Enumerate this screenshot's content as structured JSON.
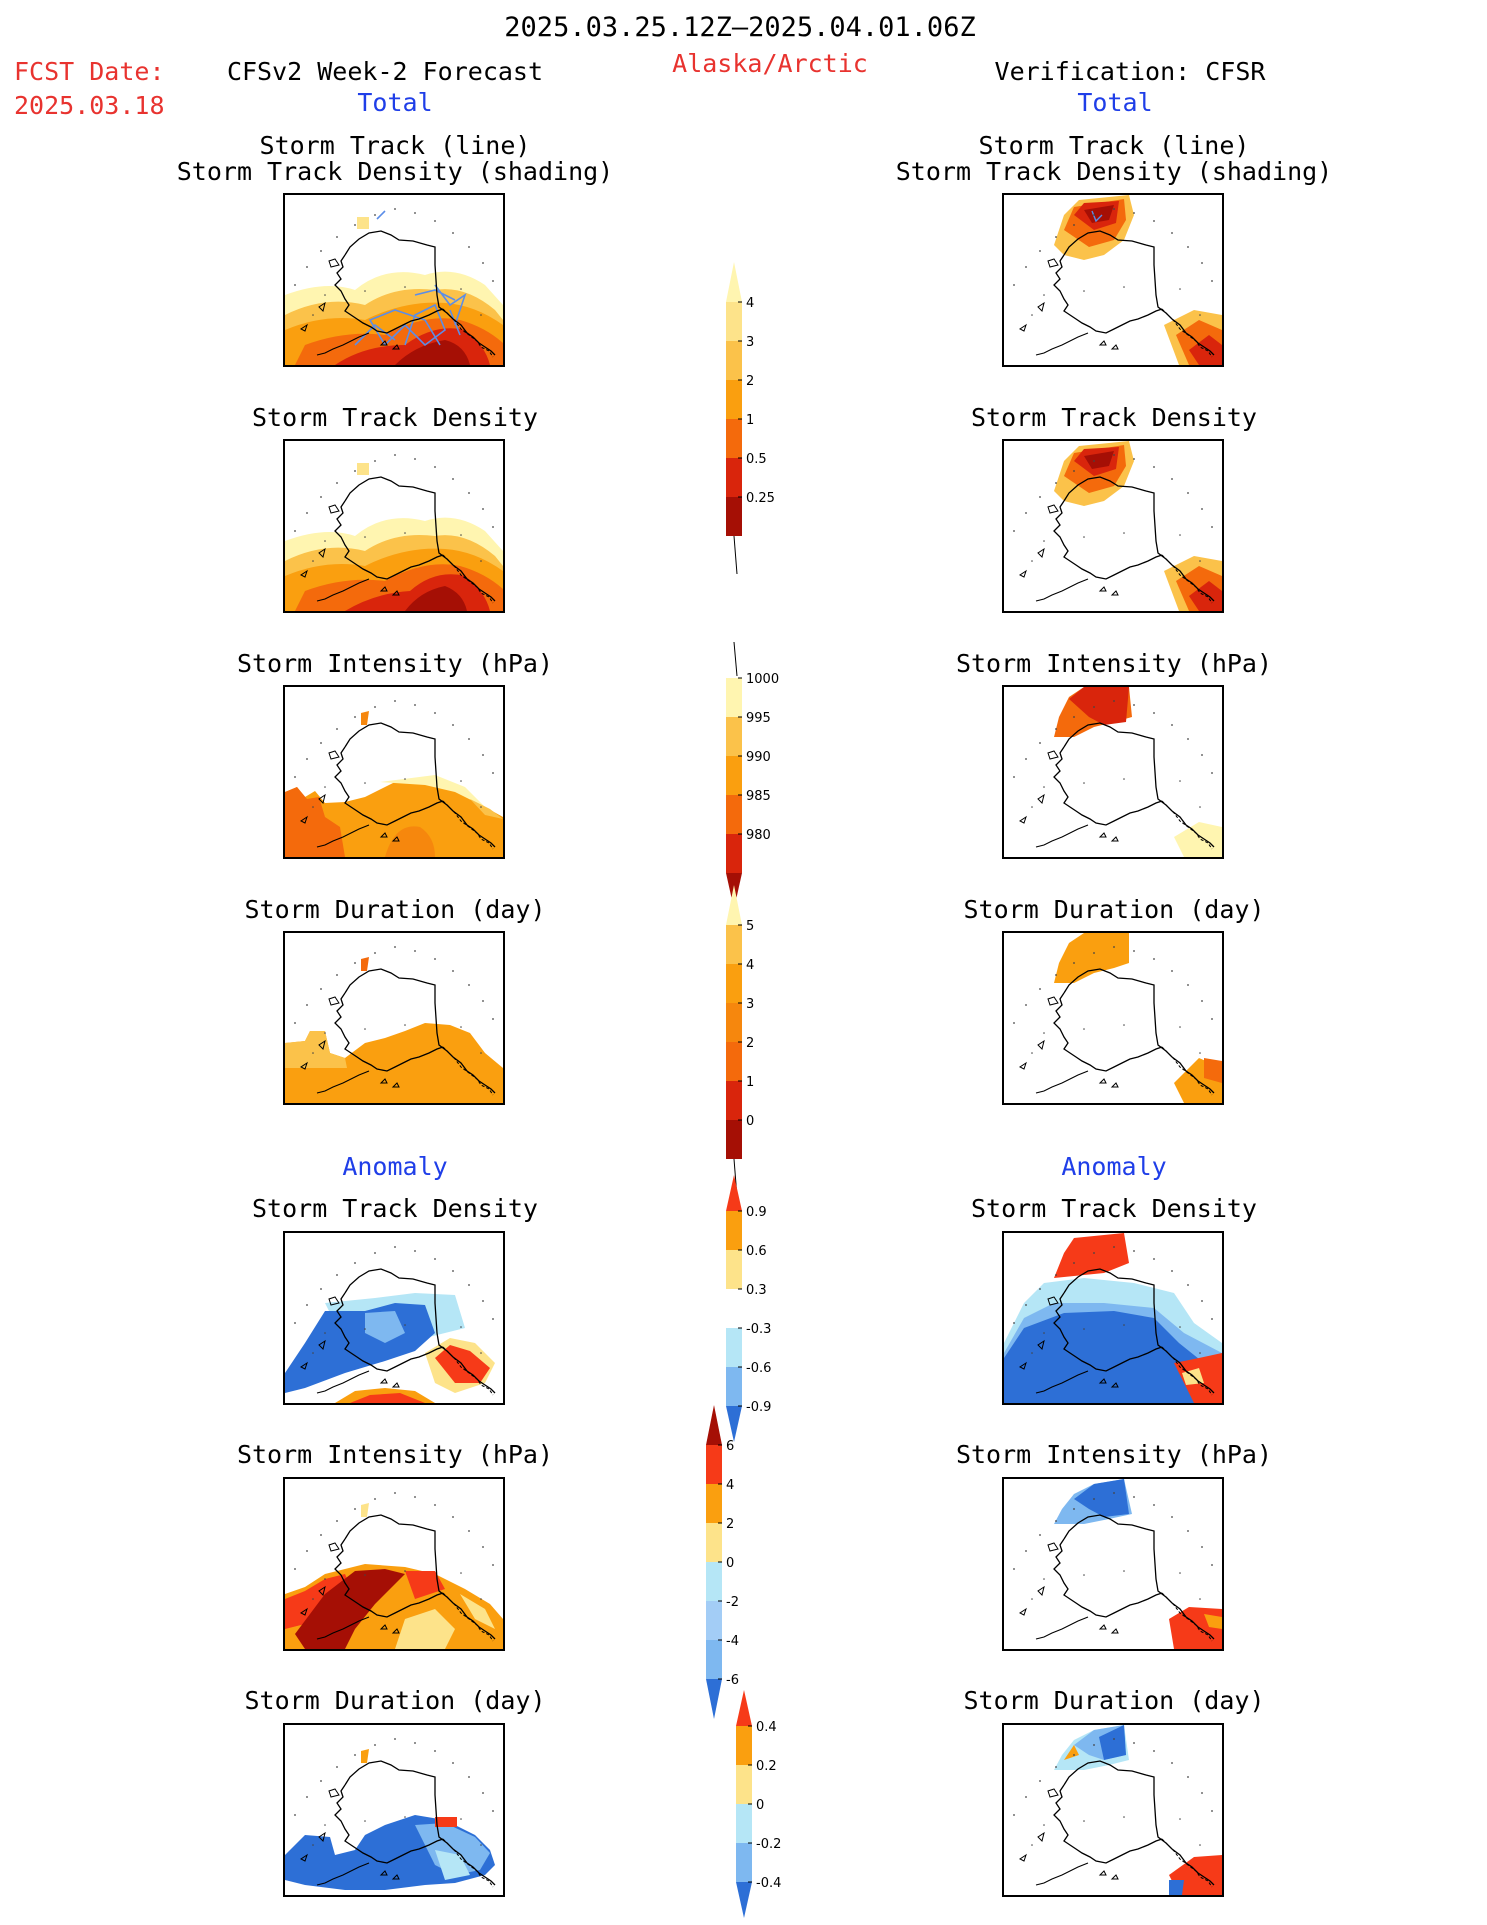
{
  "header": {
    "period": "2025.03.25.12Z–2025.04.01.06Z",
    "region": "Alaska/Arctic",
    "fcst_label": "FCST Date:",
    "fcst_date": "2025.03.18",
    "left_title": "CFSv2 Week-2 Forecast",
    "right_title": "Verification: CFSR",
    "total_label": "Total",
    "anomaly_label": "Anomaly"
  },
  "panel_titles": {
    "track_line": "Storm Track (line)",
    "track_shading": "Storm Track Density (shading)",
    "density": "Storm Track Density",
    "intensity": "Storm Intensity (hPa)",
    "duration": "Storm Duration (day)"
  },
  "colorbars": {
    "density_total": {
      "labels": [
        "0.25",
        "0.5",
        "1",
        "2",
        "3",
        "4"
      ],
      "colors": [
        "#fff5b0",
        "#fde38a",
        "#fbc24a",
        "#fa9f0f",
        "#f46a0c",
        "#d9250c",
        "#a50f05"
      ]
    },
    "intensity_total": {
      "labels": [
        "1000",
        "995",
        "990",
        "985",
        "980"
      ],
      "colors": [
        "#fff5b0",
        "#fbc24a",
        "#fa9f0f",
        "#f46a0c",
        "#d9250c",
        "#a50f05"
      ]
    },
    "duration_total": {
      "labels": [
        "0",
        "1",
        "2",
        "3",
        "4",
        "5"
      ],
      "colors": [
        "#fff5b0",
        "#fbc24a",
        "#fa9f0f",
        "#f6870d",
        "#f46a0c",
        "#d9250c",
        "#a50f05"
      ]
    },
    "density_anom": {
      "labels": [
        "0.9",
        "0.6",
        "0.3",
        "-0.3",
        "-0.6",
        "-0.9"
      ],
      "colors": [
        "#f63a18",
        "#fa9f0f",
        "#fde38a",
        "#ffffff",
        "#b5e6f6",
        "#7eb8f0",
        "#2d6fd6"
      ]
    },
    "intensity_anom": {
      "labels": [
        "6",
        "4",
        "2",
        "0",
        "-2",
        "-4",
        "-6"
      ],
      "colors": [
        "#a50f05",
        "#f63a18",
        "#fa9f0f",
        "#fde38a",
        "#b5e6f6",
        "#a3cdf6",
        "#7eb8f0",
        "#2d6fd6"
      ]
    },
    "duration_anom": {
      "labels": [
        "0.4",
        "0.2",
        "0",
        "-0.2",
        "-0.4"
      ],
      "colors": [
        "#f63a18",
        "#fa9f0f",
        "#fde38a",
        "#b5e6f6",
        "#7eb8f0",
        "#2d6fd6"
      ]
    }
  },
  "colors": {
    "red_text": "#e8332f",
    "blue_text": "#1f3ee8",
    "track_line": "#5b8de8"
  }
}
